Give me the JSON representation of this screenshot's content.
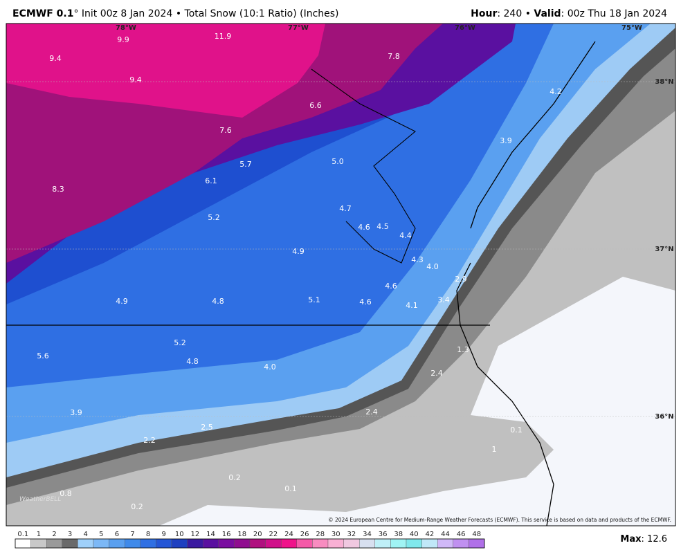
{
  "header": {
    "model": "ECMWF 0.1",
    "description": "° Init 00z 8 Jan 2024 • Total Snow (10:1 Ratio) (Inches)",
    "hour_label": "Hour",
    "hour_value": ": 240 • ",
    "valid_label": "Valid",
    "valid_value": ": 00z Thu 18 Jan 2024"
  },
  "map": {
    "graticule": [
      "78°W",
      "77°W",
      "76°W",
      "75°W",
      "38°N",
      "37°N",
      "36°N"
    ],
    "point_values": [
      "9.9",
      "11.9",
      "7.8",
      "9.4",
      "9.4",
      "4.2",
      "6.6",
      "7.6",
      "3.9",
      "5.7",
      "5.0",
      "6.1",
      "8.3",
      "4.7",
      "5.2",
      "4.6",
      "4.5",
      "4.4",
      "4.9",
      "4.3",
      "4.0",
      "2.9",
      "4.6",
      "4.9",
      "4.8",
      "5.1",
      "4.6",
      "3.4",
      "4.1",
      "5.2",
      "1.3",
      "5.6",
      "4.8",
      "4.0",
      "2.4",
      "2.4",
      "3.9",
      "2.5",
      "0.1",
      "2.2",
      "1",
      "0.2",
      "0.1",
      "0.8",
      "0.2"
    ],
    "watermark": "WeatherBELL",
    "copyright": "© 2024 European Centre for Medium-Range Weather Forecasts (ECMWF). This service is based on data and products of the ECMWF."
  },
  "legend": {
    "levels": [
      0.1,
      1,
      2,
      3,
      4,
      5,
      6,
      7,
      8,
      9,
      10,
      12,
      14,
      16,
      18,
      20,
      22,
      24,
      26,
      28,
      30,
      32,
      34,
      36,
      38,
      40,
      42,
      44,
      46,
      48
    ],
    "colors": [
      "#ffffff",
      "#c8c8c8",
      "#9a9a9a",
      "#6a6a6a",
      "#9fd0fa",
      "#7cb8f6",
      "#5aa0f0",
      "#3f8aea",
      "#2f6fe3",
      "#2456d6",
      "#1e40c0",
      "#3a1aa0",
      "#5a10a0",
      "#7a0ea0",
      "#900e90",
      "#b0107f",
      "#d0108a",
      "#f0128a",
      "#f55aa8",
      "#f88cc0",
      "#f9b0d4",
      "#f0c8e0",
      "#d8e0f0",
      "#bff0f8",
      "#a0f4f4",
      "#80e8ec",
      "#c0e8f8",
      "#d0b8f8",
      "#c090f0",
      "#b070e8"
    ]
  },
  "footer": {
    "max_label": "Max",
    "max_value": ": 12.6"
  }
}
